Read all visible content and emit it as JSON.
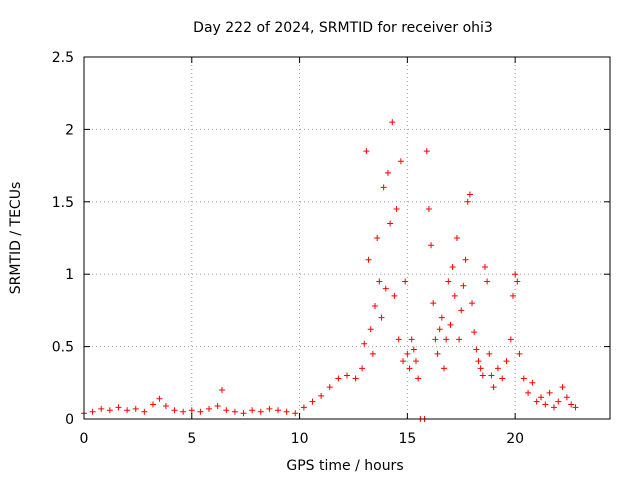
{
  "chart_data": {
    "type": "scatter",
    "title": "Day 222 of 2024, SRMTID for receiver ohi3",
    "xlabel": "GPS time / hours",
    "ylabel": "SRMTID / TECUs",
    "xlim": [
      0,
      24.4
    ],
    "ylim": [
      0,
      2.5
    ],
    "xticks": [
      "0",
      "5",
      "10",
      "15",
      "20"
    ],
    "yticks": [
      "0",
      "0.5",
      "1",
      "1.5",
      "2",
      "2.5"
    ],
    "grid": true,
    "marker": "plus",
    "color": "#ff0000",
    "series": [
      {
        "name": "SRMTID",
        "x": [
          0.0,
          0.4,
          0.8,
          1.2,
          1.6,
          2.0,
          2.4,
          2.8,
          3.2,
          3.5,
          3.8,
          4.2,
          4.6,
          5.0,
          5.4,
          5.8,
          6.2,
          6.4,
          6.6,
          7.0,
          7.4,
          7.8,
          8.2,
          8.6,
          9.0,
          9.4,
          9.8,
          10.2,
          10.6,
          11.0,
          11.4,
          11.8,
          12.2,
          12.6,
          12.9,
          13.0,
          13.1,
          13.2,
          13.3,
          13.4,
          13.5,
          13.6,
          13.7,
          13.8,
          13.9,
          14.0,
          14.1,
          14.2,
          14.3,
          14.4,
          14.5,
          14.6,
          14.7,
          14.8,
          14.9,
          15.0,
          15.1,
          15.2,
          15.3,
          15.4,
          15.5,
          15.6,
          15.8,
          15.9,
          16.0,
          16.1,
          16.2,
          16.3,
          16.4,
          16.5,
          16.6,
          16.7,
          16.8,
          16.9,
          17.0,
          17.1,
          17.2,
          17.3,
          17.4,
          17.5,
          17.6,
          17.7,
          17.8,
          17.9,
          18.0,
          18.1,
          18.2,
          18.3,
          18.4,
          18.5,
          18.6,
          18.7,
          18.8,
          18.9,
          19.0,
          19.2,
          19.4,
          19.6,
          19.8,
          19.9,
          20.0,
          20.1,
          20.2,
          20.4,
          20.6,
          20.8,
          21.0,
          21.2,
          21.4,
          21.6,
          21.8,
          22.0,
          22.2,
          22.4,
          22.6,
          22.8
        ],
        "y": [
          0.04,
          0.05,
          0.07,
          0.06,
          0.08,
          0.06,
          0.07,
          0.05,
          0.1,
          0.14,
          0.09,
          0.06,
          0.05,
          0.06,
          0.05,
          0.07,
          0.09,
          0.2,
          0.06,
          0.05,
          0.04,
          0.06,
          0.05,
          0.07,
          0.06,
          0.05,
          0.04,
          0.08,
          0.12,
          0.16,
          0.22,
          0.28,
          0.3,
          0.28,
          0.35,
          0.52,
          1.85,
          1.1,
          0.62,
          0.45,
          0.78,
          1.25,
          0.95,
          0.7,
          1.6,
          0.9,
          1.7,
          1.35,
          2.05,
          0.85,
          1.45,
          0.55,
          1.78,
          0.4,
          0.95,
          0.45,
          0.35,
          0.55,
          0.48,
          0.4,
          0.28,
          0.0,
          0.0,
          1.85,
          1.45,
          1.2,
          0.8,
          0.55,
          0.45,
          0.62,
          0.7,
          0.35,
          0.55,
          0.95,
          0.65,
          1.05,
          0.85,
          1.25,
          0.55,
          0.75,
          0.92,
          1.1,
          1.5,
          1.55,
          0.8,
          0.6,
          0.48,
          0.4,
          0.35,
          0.3,
          1.05,
          0.95,
          0.45,
          0.3,
          0.22,
          0.35,
          0.28,
          0.4,
          0.55,
          0.85,
          1.0,
          0.95,
          0.45,
          0.28,
          0.18,
          0.25,
          0.12,
          0.15,
          0.1,
          0.18,
          0.08,
          0.12,
          0.22,
          0.15,
          0.1,
          0.08
        ]
      }
    ]
  }
}
